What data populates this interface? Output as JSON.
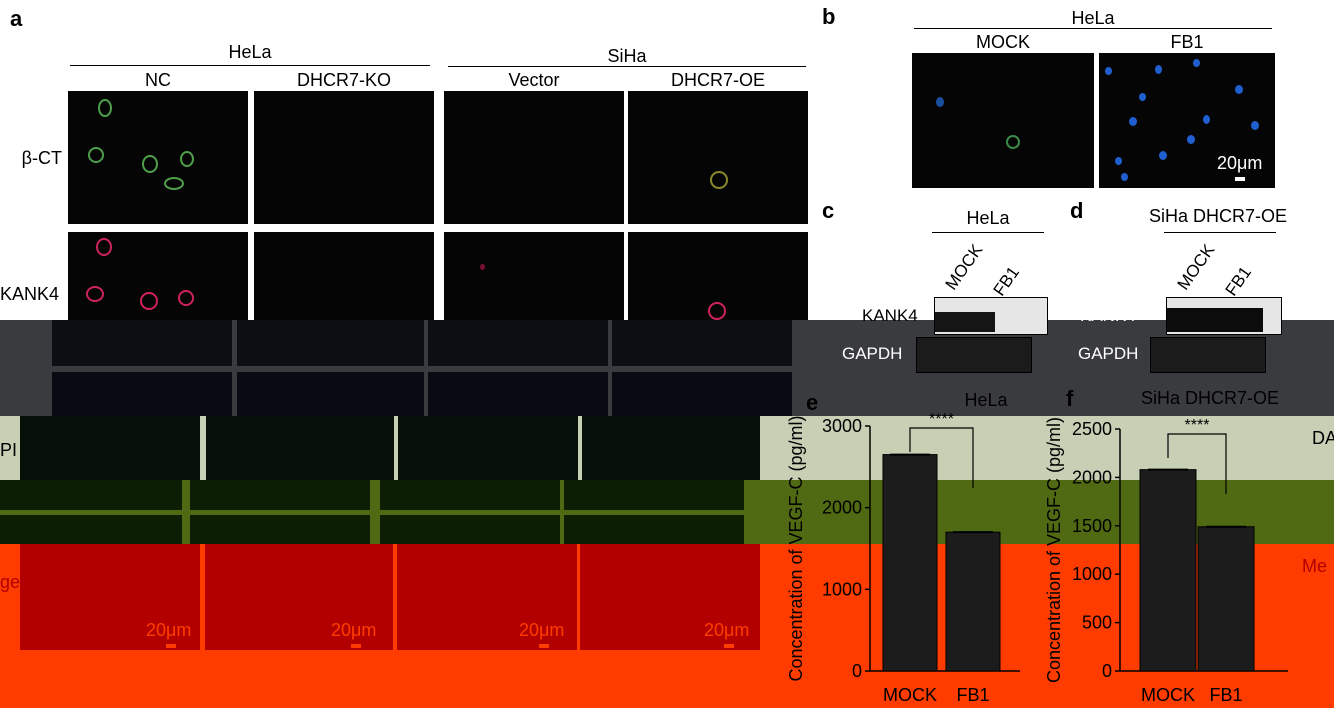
{
  "panel_a": {
    "letter": "a",
    "group_hela": "HeLa",
    "group_siha": "SiHa",
    "columns": [
      "NC",
      "DHCR7-KO",
      "Vector",
      "DHCR7-OE"
    ],
    "rows": [
      "β-CT",
      "KANK4",
      "DAPI",
      "Merge"
    ],
    "row_label_dapi_visible": "PI",
    "row_label_merge_visible": "ge",
    "scale": "20μm"
  },
  "panel_b": {
    "letter": "b",
    "group": "HeLa",
    "columns": [
      "MOCK",
      "FB1"
    ],
    "scale": "20μm"
  },
  "panel_c": {
    "letter": "c",
    "group": "HeLa",
    "lanes": [
      "MOCK",
      "FB1"
    ],
    "bands": [
      "KANK4",
      "GAPDH"
    ]
  },
  "panel_d": {
    "letter": "d",
    "group": "SiHa DHCR7-OE",
    "lanes": [
      "MOCK",
      "FB1"
    ],
    "bands": [
      "KANK4",
      "GAPDH"
    ]
  },
  "right_edge_labels": {
    "dapi": "DA",
    "merge": "Me"
  },
  "chart_data": [
    {
      "letter": "e",
      "type": "bar",
      "title": "HeLa",
      "ylabel": "Concentration of VEGF-C (pg/ml)",
      "categories": [
        "MOCK",
        "FB1"
      ],
      "values": [
        2650,
        1700
      ],
      "ylim": [
        0,
        3000
      ],
      "yticks": [
        "0",
        "1000",
        "2000",
        "3000"
      ],
      "significance": "****"
    },
    {
      "letter": "f",
      "type": "bar",
      "title": "SiHa DHCR7-OE",
      "ylabel": "Concentration of VEGF-C (pg/ml)",
      "categories": [
        "MOCK",
        "FB1"
      ],
      "values": [
        2080,
        1490
      ],
      "ylim": [
        0,
        2500
      ],
      "yticks": [
        "0",
        "500",
        "1000",
        "1500",
        "2000",
        "2500"
      ],
      "significance": "****"
    }
  ]
}
